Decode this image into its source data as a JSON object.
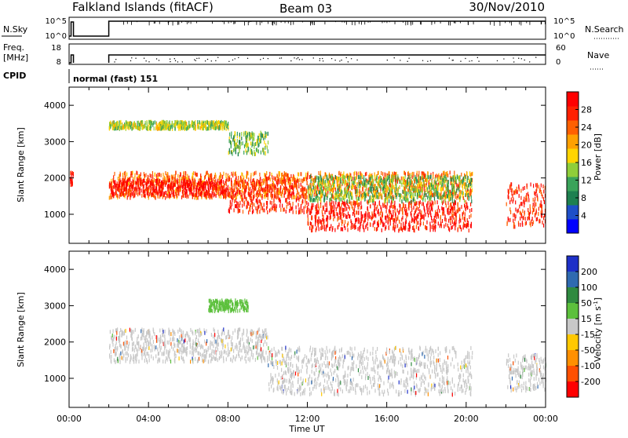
{
  "header": {
    "station": "Falkland Islands (fitACF)",
    "beam": "Beam 03",
    "date": "30/Nov/2010"
  },
  "panels": {
    "nsky": {
      "label": "N.Sky",
      "ticks": [
        "10^5",
        "10^0"
      ],
      "right_label": "N.Search",
      "right_ticks": [
        "10^5",
        "10^0"
      ]
    },
    "freq": {
      "label_line1": "Freq.",
      "label_line2": "[MHz]",
      "ticks": [
        "18",
        "8"
      ],
      "right_label": "Nave",
      "right_ticks": [
        "60",
        "0"
      ]
    },
    "cpid": {
      "label": "CPID",
      "value": "normal (fast) 151"
    }
  },
  "chart_data": [
    {
      "type": "heatmap",
      "name_printed": "",
      "xlabel": "Time UT",
      "ylabel": "Slant Range [km]",
      "xticks": [
        "00:00",
        "04:00",
        "08:00",
        "12:00",
        "16:00",
        "20:00",
        "00:00"
      ],
      "xlim_hours": [
        0,
        24
      ],
      "yticks": [
        1000,
        2000,
        3000,
        4000
      ],
      "ylim": [
        200,
        4500
      ],
      "colorbar": {
        "label": "Power [dB]",
        "ticks": [
          "4",
          "8",
          "12",
          "16",
          "20",
          "24",
          "28"
        ],
        "range": [
          0,
          30
        ],
        "colors": [
          "#0000ff",
          "#1e4fc8",
          "#1e8050",
          "#3aa35a",
          "#8fce3a",
          "#ffd400",
          "#ffa000",
          "#ff6000",
          "#ff2000",
          "#ff0000"
        ]
      },
      "scatter_bands": [
        {
          "t0": 2.0,
          "t1": 20.3,
          "r0": 1500,
          "r1": 2200,
          "level": 22
        },
        {
          "t0": 2.0,
          "t1": 8.0,
          "r0": 1550,
          "r1": 2000,
          "level": 28
        },
        {
          "t0": 8.0,
          "t1": 12.0,
          "r0": 1100,
          "r1": 2050,
          "level": 26
        },
        {
          "t0": 12.0,
          "t1": 20.3,
          "r0": 600,
          "r1": 1400,
          "level": 27
        },
        {
          "t0": 12.0,
          "t1": 20.3,
          "r0": 1400,
          "r1": 2100,
          "level": 12
        },
        {
          "t0": 2.0,
          "t1": 8.0,
          "r0": 3400,
          "r1": 3600,
          "level": 14
        },
        {
          "t0": 8.0,
          "t1": 10.0,
          "r0": 2700,
          "r1": 3300,
          "level": 12
        },
        {
          "t0": 22.0,
          "t1": 24.0,
          "r0": 700,
          "r1": 1900,
          "level": 26
        },
        {
          "t0": 0.0,
          "t1": 0.2,
          "r0": 1800,
          "r1": 2200,
          "level": 28
        }
      ]
    },
    {
      "type": "heatmap",
      "name_printed": "",
      "xlabel": "Time UT",
      "ylabel": "Slant Range [km]",
      "xticks": [
        "00:00",
        "04:00",
        "08:00",
        "12:00",
        "16:00",
        "20:00",
        "00:00"
      ],
      "xlim_hours": [
        0,
        24
      ],
      "yticks": [
        1000,
        2000,
        3000,
        4000
      ],
      "ylim": [
        200,
        4500
      ],
      "colorbar": {
        "label": "Velocity [m s-1]",
        "label_main": "Velocity [m s",
        "label_sup": "-1",
        "label_end": "]",
        "ticks": [
          "200",
          "100",
          "50",
          "15",
          "-15",
          "-50",
          "-100",
          "-200"
        ],
        "colors": [
          "#1e30c8",
          "#2f6ab0",
          "#2f8a40",
          "#5cc03c",
          "#c8c8c8",
          "#ffc800",
          "#ff9000",
          "#ff5000",
          "#ff0000"
        ]
      },
      "scatter_bands": [
        {
          "t0": 2.0,
          "t1": 10.0,
          "r0": 1500,
          "r1": 2400,
          "level": 0
        },
        {
          "t0": 10.0,
          "t1": 20.3,
          "r0": 600,
          "r1": 1900,
          "level": 0
        },
        {
          "t0": 22.0,
          "t1": 24.0,
          "r0": 700,
          "r1": 1700,
          "level": 0
        },
        {
          "t0": 7.0,
          "t1": 9.0,
          "r0": 2900,
          "r1": 3200,
          "level": 30
        }
      ]
    }
  ]
}
